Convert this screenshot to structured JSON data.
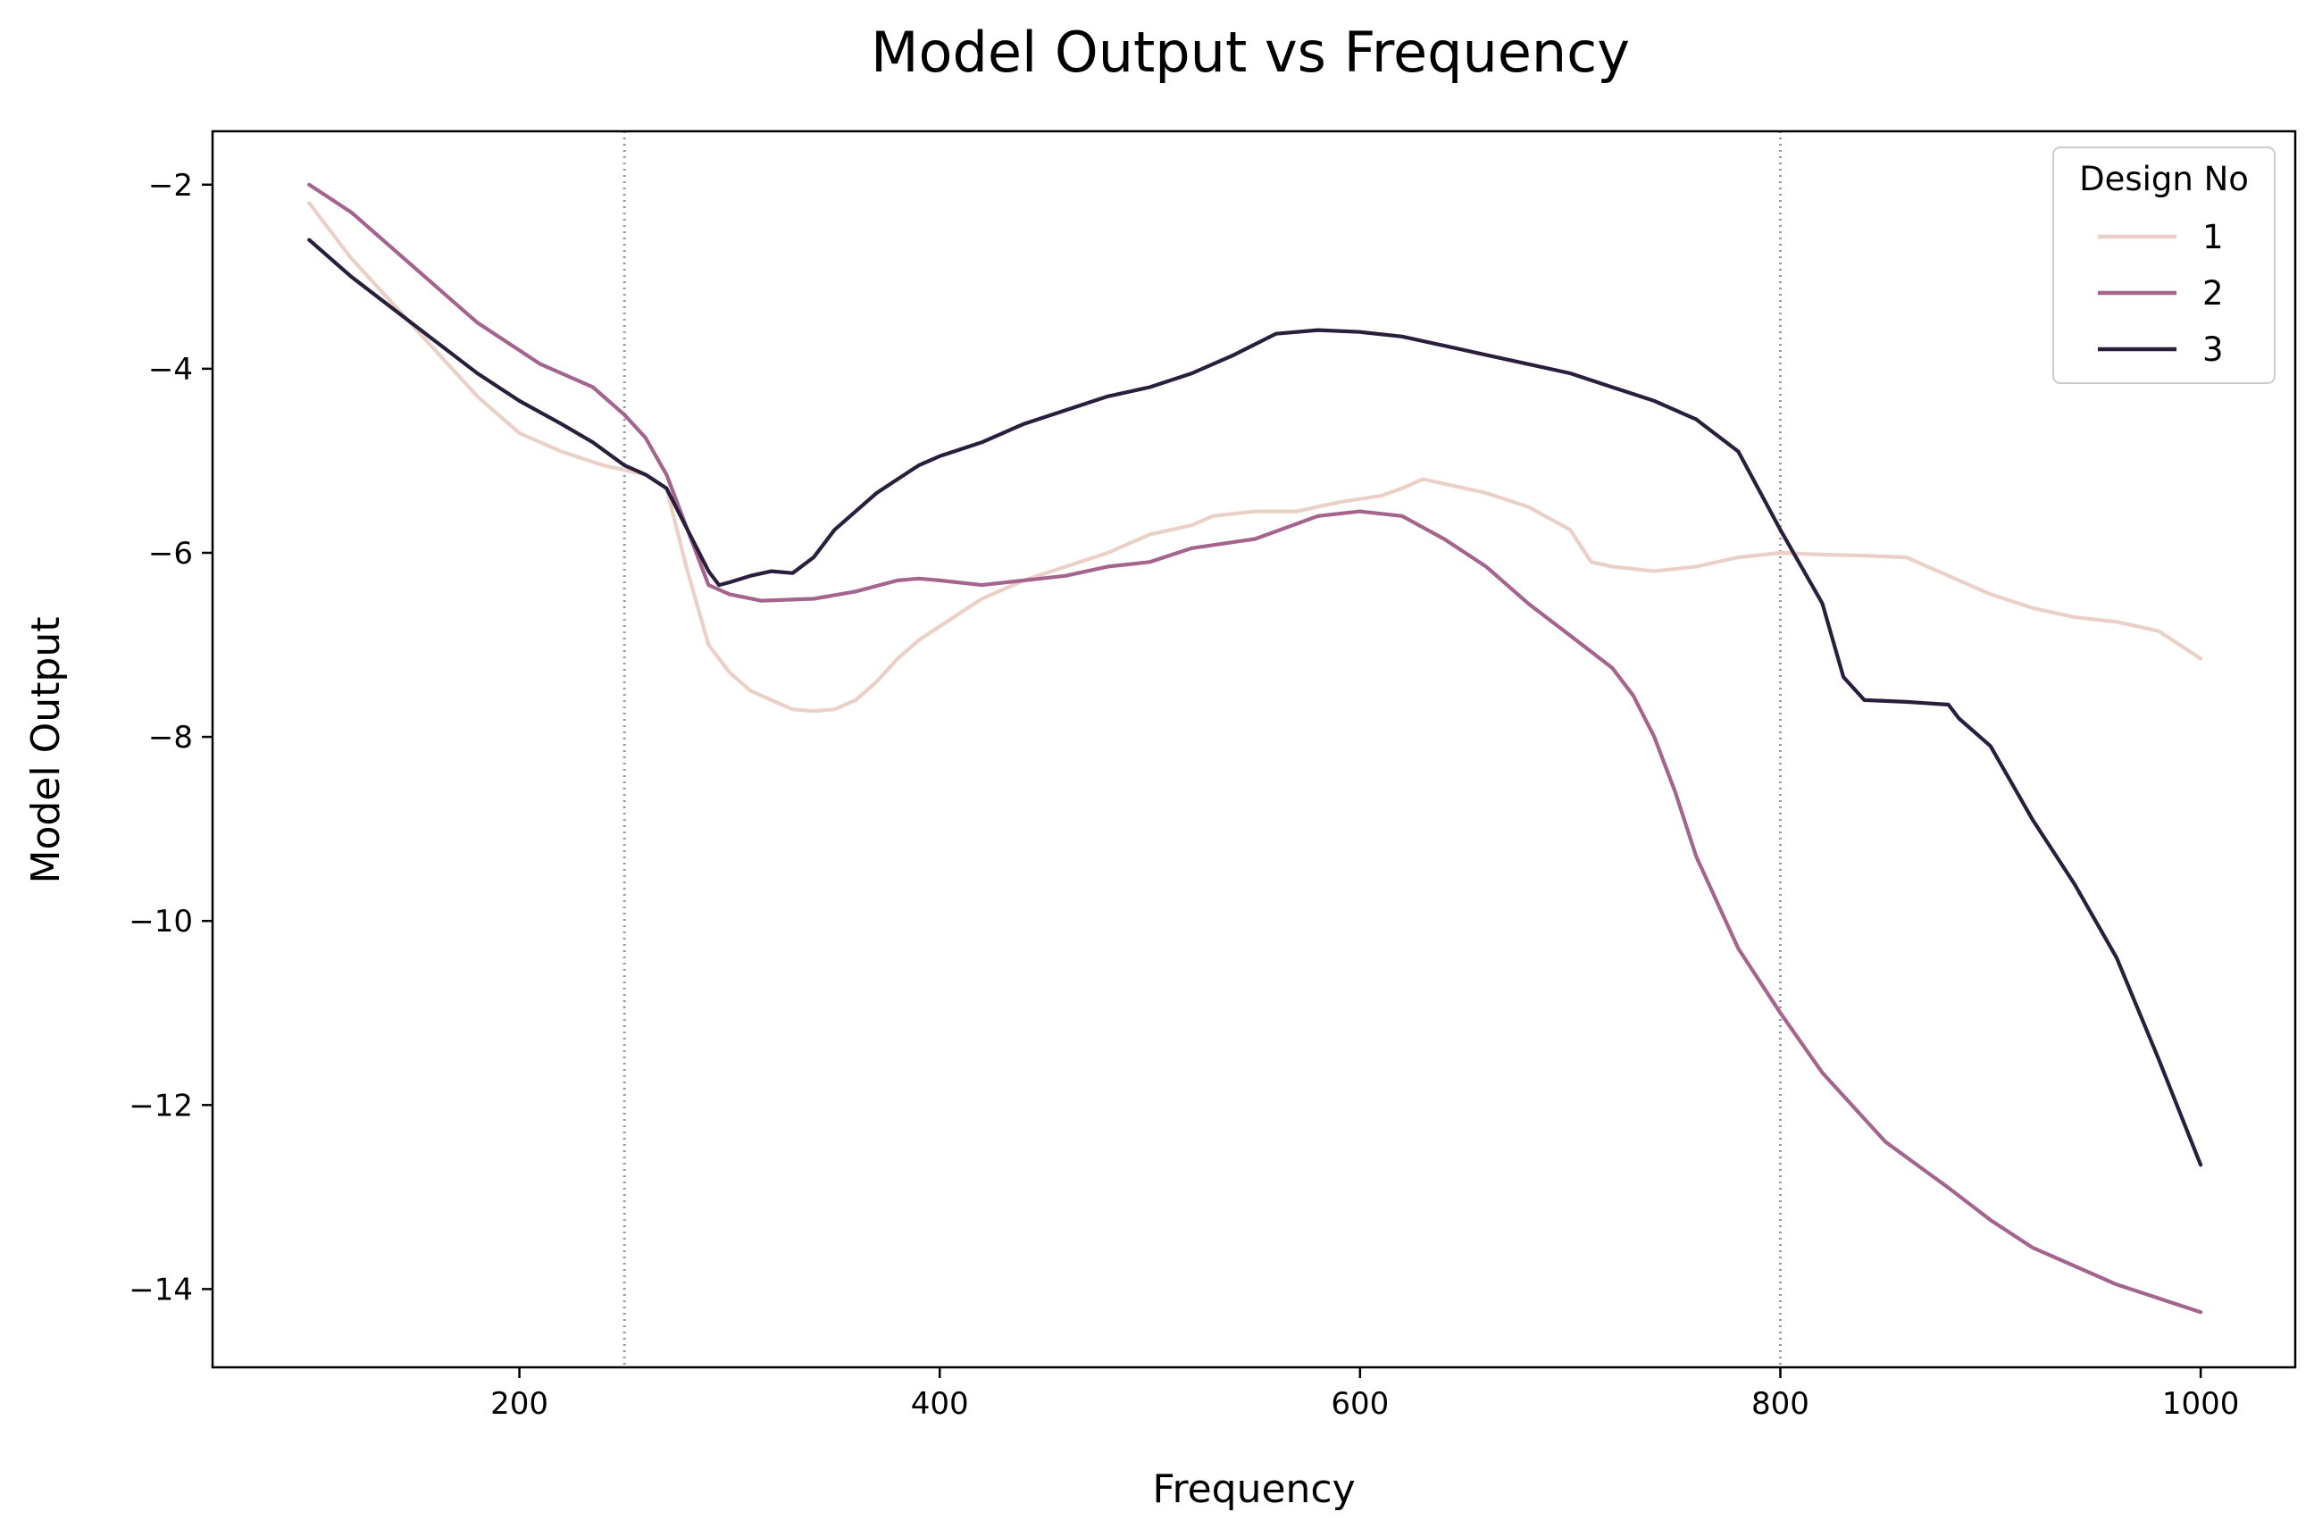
{
  "chart_data": {
    "type": "line",
    "title": "Model Output vs Frequency",
    "xlabel": "Frequency",
    "ylabel": "Model Output",
    "xlim": [
      54,
      1045
    ],
    "ylim": [
      -14.85,
      -1.42
    ],
    "xticks": [
      200,
      400,
      600,
      800,
      1000
    ],
    "yticks": [
      -2,
      -4,
      -6,
      -8,
      -10,
      -12,
      -14
    ],
    "xtick_labels": [
      "200",
      "400",
      "600",
      "800",
      "1000"
    ],
    "ytick_labels": [
      "−2",
      "−4",
      "−6",
      "−8",
      "−10",
      "−12",
      "−14"
    ],
    "vlines": [
      250,
      800
    ],
    "grid": false,
    "legend": {
      "title": "Design No",
      "position": "top-right"
    },
    "series": [
      {
        "name": "1",
        "color": "#ebd0c7",
        "x": [
          100,
          120,
          140,
          160,
          180,
          200,
          220,
          240,
          250,
          260,
          270,
          280,
          290,
          300,
          310,
          320,
          330,
          340,
          350,
          360,
          370,
          380,
          390,
          400,
          420,
          440,
          460,
          480,
          500,
          520,
          530,
          550,
          570,
          590,
          610,
          620,
          630,
          640,
          660,
          680,
          700,
          710,
          720,
          740,
          760,
          780,
          800,
          820,
          840,
          860,
          880,
          900,
          920,
          940,
          960,
          980,
          1000
        ],
        "y": [
          -2.2,
          -2.8,
          -3.3,
          -3.8,
          -4.3,
          -4.7,
          -4.9,
          -5.05,
          -5.1,
          -5.15,
          -5.3,
          -6.2,
          -7.0,
          -7.3,
          -7.5,
          -7.6,
          -7.7,
          -7.72,
          -7.7,
          -7.6,
          -7.4,
          -7.15,
          -6.95,
          -6.8,
          -6.5,
          -6.3,
          -6.15,
          -6.0,
          -5.8,
          -5.7,
          -5.6,
          -5.55,
          -5.55,
          -5.45,
          -5.38,
          -5.3,
          -5.2,
          -5.25,
          -5.35,
          -5.5,
          -5.75,
          -6.1,
          -6.15,
          -6.2,
          -6.15,
          -6.05,
          -6.0,
          -6.02,
          -6.03,
          -6.05,
          -6.25,
          -6.45,
          -6.6,
          -6.7,
          -6.75,
          -6.85,
          -7.15
        ]
      },
      {
        "name": "2",
        "color": "#a4648d",
        "x": [
          100,
          120,
          140,
          160,
          180,
          200,
          210,
          220,
          235,
          250,
          260,
          265,
          270,
          280,
          290,
          300,
          315,
          340,
          360,
          380,
          390,
          400,
          420,
          440,
          460,
          480,
          500,
          520,
          550,
          580,
          600,
          620,
          640,
          660,
          680,
          700,
          720,
          730,
          740,
          750,
          760,
          780,
          800,
          820,
          850,
          880,
          900,
          920,
          940,
          960,
          980,
          1000
        ],
        "y": [
          -2.0,
          -2.3,
          -2.7,
          -3.1,
          -3.5,
          -3.8,
          -3.95,
          -4.05,
          -4.2,
          -4.5,
          -4.75,
          -4.95,
          -5.15,
          -5.75,
          -6.35,
          -6.45,
          -6.52,
          -6.5,
          -6.42,
          -6.3,
          -6.28,
          -6.3,
          -6.35,
          -6.3,
          -6.25,
          -6.15,
          -6.1,
          -5.95,
          -5.85,
          -5.6,
          -5.55,
          -5.6,
          -5.85,
          -6.15,
          -6.55,
          -6.9,
          -7.25,
          -7.55,
          -8.0,
          -8.6,
          -9.3,
          -10.3,
          -11.0,
          -11.65,
          -12.4,
          -12.9,
          -13.25,
          -13.55,
          -13.75,
          -13.95,
          -14.1,
          -14.25
        ]
      },
      {
        "name": "3",
        "color": "#2a1e3d",
        "x": [
          100,
          120,
          140,
          160,
          180,
          200,
          220,
          235,
          250,
          260,
          270,
          280,
          290,
          295,
          300,
          310,
          320,
          330,
          340,
          350,
          360,
          370,
          380,
          390,
          400,
          420,
          440,
          460,
          480,
          500,
          520,
          540,
          560,
          580,
          600,
          620,
          640,
          660,
          680,
          700,
          720,
          740,
          760,
          780,
          800,
          820,
          830,
          840,
          860,
          880,
          885,
          900,
          920,
          940,
          960,
          980,
          1000
        ],
        "y": [
          -2.6,
          -3.0,
          -3.35,
          -3.7,
          -4.05,
          -4.35,
          -4.6,
          -4.8,
          -5.05,
          -5.15,
          -5.3,
          -5.75,
          -6.2,
          -6.35,
          -6.32,
          -6.25,
          -6.2,
          -6.22,
          -6.05,
          -5.75,
          -5.55,
          -5.35,
          -5.2,
          -5.05,
          -4.95,
          -4.8,
          -4.6,
          -4.45,
          -4.3,
          -4.2,
          -4.05,
          -3.85,
          -3.62,
          -3.58,
          -3.6,
          -3.65,
          -3.75,
          -3.85,
          -3.95,
          -4.05,
          -4.2,
          -4.35,
          -4.55,
          -4.9,
          -5.75,
          -6.55,
          -7.35,
          -7.6,
          -7.62,
          -7.65,
          -7.8,
          -8.1,
          -8.9,
          -9.6,
          -10.4,
          -11.5,
          -12.65
        ]
      }
    ]
  }
}
